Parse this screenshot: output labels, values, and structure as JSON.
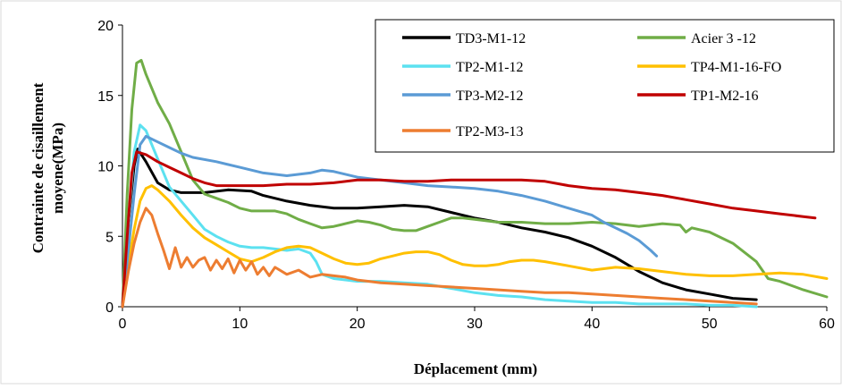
{
  "chart_data": {
    "type": "line",
    "xlabel": "Déplacement (mm)",
    "ylabel_line1": "Contrainte de cisaillement",
    "ylabel_line2": "moyene(MPa)",
    "xlim": [
      0,
      60
    ],
    "ylim": [
      0,
      20
    ],
    "x_ticks": [
      "0",
      "10",
      "20",
      "30",
      "40",
      "50",
      "60"
    ],
    "y_ticks": [
      "0",
      "5",
      "10",
      "15",
      "20"
    ],
    "grid": false,
    "legend_position": "top-right",
    "series": [
      {
        "name": "TD3-M1-12",
        "color": "#000000",
        "points": [
          [
            0,
            0
          ],
          [
            0.5,
            6
          ],
          [
            1,
            10
          ],
          [
            1.3,
            11.2
          ],
          [
            2,
            10.3
          ],
          [
            3,
            8.8
          ],
          [
            4,
            8.3
          ],
          [
            5,
            8.1
          ],
          [
            7,
            8.1
          ],
          [
            9,
            8.3
          ],
          [
            11,
            8.2
          ],
          [
            12,
            7.9
          ],
          [
            14,
            7.5
          ],
          [
            16,
            7.2
          ],
          [
            18,
            7.0
          ],
          [
            20,
            7.0
          ],
          [
            22,
            7.1
          ],
          [
            24,
            7.2
          ],
          [
            26,
            7.1
          ],
          [
            28,
            6.7
          ],
          [
            30,
            6.3
          ],
          [
            32,
            6.0
          ],
          [
            34,
            5.6
          ],
          [
            36,
            5.3
          ],
          [
            38,
            4.9
          ],
          [
            40,
            4.3
          ],
          [
            42,
            3.5
          ],
          [
            44,
            2.5
          ],
          [
            46,
            1.7
          ],
          [
            48,
            1.2
          ],
          [
            50,
            0.9
          ],
          [
            52,
            0.6
          ],
          [
            54,
            0.5
          ]
        ]
      },
      {
        "name": "Acier 3 -12",
        "color": "#70AD47",
        "points": [
          [
            0,
            0
          ],
          [
            0.4,
            8
          ],
          [
            0.8,
            14
          ],
          [
            1.2,
            17.3
          ],
          [
            1.6,
            17.5
          ],
          [
            2,
            16.5
          ],
          [
            3,
            14.5
          ],
          [
            4,
            13
          ],
          [
            5,
            11
          ],
          [
            6,
            9
          ],
          [
            7,
            8
          ],
          [
            8,
            7.7
          ],
          [
            9,
            7.4
          ],
          [
            10,
            7
          ],
          [
            11,
            6.8
          ],
          [
            12,
            6.8
          ],
          [
            13,
            6.8
          ],
          [
            14,
            6.6
          ],
          [
            15,
            6.2
          ],
          [
            16,
            5.9
          ],
          [
            17,
            5.6
          ],
          [
            18,
            5.7
          ],
          [
            19,
            5.9
          ],
          [
            20,
            6.1
          ],
          [
            21,
            6.0
          ],
          [
            22,
            5.8
          ],
          [
            23,
            5.5
          ],
          [
            24,
            5.4
          ],
          [
            25,
            5.4
          ],
          [
            26,
            5.7
          ],
          [
            27,
            6.0
          ],
          [
            28,
            6.3
          ],
          [
            29,
            6.3
          ],
          [
            30,
            6.2
          ],
          [
            32,
            6.0
          ],
          [
            34,
            6.0
          ],
          [
            36,
            5.9
          ],
          [
            38,
            5.9
          ],
          [
            40,
            6.0
          ],
          [
            42,
            5.9
          ],
          [
            44,
            5.7
          ],
          [
            46,
            5.9
          ],
          [
            47.5,
            5.8
          ],
          [
            48,
            5.3
          ],
          [
            48.5,
            5.6
          ],
          [
            50,
            5.3
          ],
          [
            52,
            4.5
          ],
          [
            54,
            3.2
          ],
          [
            55,
            2.0
          ],
          [
            56,
            1.8
          ],
          [
            58,
            1.2
          ],
          [
            60,
            0.7
          ]
        ]
      },
      {
        "name": "TP2-M1-12",
        "color": "#5CE1F0",
        "points": [
          [
            0,
            0
          ],
          [
            0.5,
            6
          ],
          [
            1,
            11
          ],
          [
            1.5,
            12.9
          ],
          [
            2,
            12.5
          ],
          [
            3,
            10.5
          ],
          [
            4,
            8.5
          ],
          [
            5,
            7.5
          ],
          [
            6,
            6.5
          ],
          [
            7,
            5.5
          ],
          [
            8,
            5.0
          ],
          [
            9,
            4.6
          ],
          [
            10,
            4.3
          ],
          [
            11,
            4.2
          ],
          [
            12,
            4.2
          ],
          [
            13,
            4.1
          ],
          [
            14,
            4.0
          ],
          [
            15,
            4.1
          ],
          [
            16,
            3.8
          ],
          [
            16.5,
            3.2
          ],
          [
            17,
            2.3
          ],
          [
            18,
            2.0
          ],
          [
            20,
            1.8
          ],
          [
            22,
            1.8
          ],
          [
            24,
            1.7
          ],
          [
            26,
            1.6
          ],
          [
            28,
            1.3
          ],
          [
            30,
            1.0
          ],
          [
            32,
            0.8
          ],
          [
            34,
            0.7
          ],
          [
            36,
            0.5
          ],
          [
            38,
            0.4
          ],
          [
            40,
            0.3
          ],
          [
            42,
            0.3
          ],
          [
            44,
            0.2
          ],
          [
            46,
            0.2
          ],
          [
            48,
            0.2
          ],
          [
            50,
            0.1
          ],
          [
            52,
            0.1
          ],
          [
            54,
            0.0
          ]
        ]
      },
      {
        "name": "TP4-M1-16-FO",
        "color": "#FFC000",
        "points": [
          [
            0,
            0
          ],
          [
            0.5,
            3
          ],
          [
            1,
            5.5
          ],
          [
            1.5,
            7.5
          ],
          [
            2,
            8.4
          ],
          [
            2.5,
            8.6
          ],
          [
            3,
            8.3
          ],
          [
            4,
            7.5
          ],
          [
            5,
            6.5
          ],
          [
            6,
            5.6
          ],
          [
            7,
            4.9
          ],
          [
            8,
            4.4
          ],
          [
            9,
            3.9
          ],
          [
            10,
            3.4
          ],
          [
            11,
            3.2
          ],
          [
            12,
            3.5
          ],
          [
            13,
            3.9
          ],
          [
            14,
            4.2
          ],
          [
            15,
            4.3
          ],
          [
            16,
            4.2
          ],
          [
            17,
            3.8
          ],
          [
            18,
            3.4
          ],
          [
            19,
            3.1
          ],
          [
            20,
            3.0
          ],
          [
            21,
            3.1
          ],
          [
            22,
            3.4
          ],
          [
            23,
            3.6
          ],
          [
            24,
            3.8
          ],
          [
            25,
            3.9
          ],
          [
            26,
            3.9
          ],
          [
            27,
            3.7
          ],
          [
            28,
            3.3
          ],
          [
            29,
            3.0
          ],
          [
            30,
            2.9
          ],
          [
            31,
            2.9
          ],
          [
            32,
            3.0
          ],
          [
            33,
            3.2
          ],
          [
            34,
            3.3
          ],
          [
            35,
            3.3
          ],
          [
            36,
            3.2
          ],
          [
            38,
            2.9
          ],
          [
            40,
            2.6
          ],
          [
            42,
            2.8
          ],
          [
            44,
            2.7
          ],
          [
            46,
            2.5
          ],
          [
            48,
            2.3
          ],
          [
            50,
            2.2
          ],
          [
            52,
            2.2
          ],
          [
            54,
            2.3
          ],
          [
            56,
            2.4
          ],
          [
            58,
            2.3
          ],
          [
            60,
            2.0
          ]
        ]
      },
      {
        "name": "TP3-M2-12",
        "color": "#5B9BD5",
        "points": [
          [
            0,
            0
          ],
          [
            0.5,
            4
          ],
          [
            1,
            8
          ],
          [
            1.5,
            11.5
          ],
          [
            2,
            12.1
          ],
          [
            3,
            11.7
          ],
          [
            4,
            11.3
          ],
          [
            5,
            10.9
          ],
          [
            6,
            10.6
          ],
          [
            8,
            10.3
          ],
          [
            10,
            9.9
          ],
          [
            12,
            9.5
          ],
          [
            14,
            9.3
          ],
          [
            16,
            9.5
          ],
          [
            17,
            9.7
          ],
          [
            18,
            9.6
          ],
          [
            20,
            9.2
          ],
          [
            22,
            9.0
          ],
          [
            24,
            8.8
          ],
          [
            26,
            8.6
          ],
          [
            28,
            8.5
          ],
          [
            30,
            8.4
          ],
          [
            32,
            8.2
          ],
          [
            34,
            7.9
          ],
          [
            36,
            7.5
          ],
          [
            38,
            7.0
          ],
          [
            40,
            6.5
          ],
          [
            41,
            6.0
          ],
          [
            42,
            5.6
          ],
          [
            43,
            5.2
          ],
          [
            44,
            4.7
          ],
          [
            45,
            4.0
          ],
          [
            45.5,
            3.6
          ]
        ]
      },
      {
        "name": "TP1-M2-16",
        "color": "#C00000",
        "points": [
          [
            0,
            0
          ],
          [
            0.4,
            5
          ],
          [
            0.8,
            9.5
          ],
          [
            1.2,
            11.0
          ],
          [
            1.6,
            10.9
          ],
          [
            2,
            10.8
          ],
          [
            3,
            10.3
          ],
          [
            4,
            9.9
          ],
          [
            5,
            9.5
          ],
          [
            6,
            9.1
          ],
          [
            7,
            8.8
          ],
          [
            8,
            8.6
          ],
          [
            10,
            8.6
          ],
          [
            12,
            8.6
          ],
          [
            14,
            8.7
          ],
          [
            16,
            8.7
          ],
          [
            18,
            8.8
          ],
          [
            20,
            9.0
          ],
          [
            22,
            9.0
          ],
          [
            24,
            8.9
          ],
          [
            26,
            8.9
          ],
          [
            28,
            9.0
          ],
          [
            30,
            9.0
          ],
          [
            32,
            9.0
          ],
          [
            34,
            9.0
          ],
          [
            36,
            8.9
          ],
          [
            38,
            8.6
          ],
          [
            40,
            8.4
          ],
          [
            42,
            8.3
          ],
          [
            44,
            8.1
          ],
          [
            46,
            7.9
          ],
          [
            48,
            7.6
          ],
          [
            50,
            7.3
          ],
          [
            52,
            7.0
          ],
          [
            54,
            6.8
          ],
          [
            56,
            6.6
          ],
          [
            58,
            6.4
          ],
          [
            59,
            6.3
          ]
        ]
      },
      {
        "name": "TP2-M3-13",
        "color": "#ED7D31",
        "points": [
          [
            0,
            0
          ],
          [
            0.5,
            2.5
          ],
          [
            1,
            4.5
          ],
          [
            1.5,
            6
          ],
          [
            2,
            7.0
          ],
          [
            2.5,
            6.5
          ],
          [
            3,
            5.2
          ],
          [
            3.5,
            4
          ],
          [
            4,
            2.7
          ],
          [
            4.5,
            4.2
          ],
          [
            5,
            2.8
          ],
          [
            5.5,
            3.5
          ],
          [
            6,
            2.8
          ],
          [
            6.5,
            3.3
          ],
          [
            7,
            3.5
          ],
          [
            7.5,
            2.6
          ],
          [
            8,
            3.3
          ],
          [
            8.5,
            2.7
          ],
          [
            9,
            3.4
          ],
          [
            9.5,
            2.4
          ],
          [
            10,
            3.3
          ],
          [
            10.5,
            2.6
          ],
          [
            11,
            3.2
          ],
          [
            11.5,
            2.3
          ],
          [
            12,
            2.8
          ],
          [
            12.5,
            2.2
          ],
          [
            13,
            2.8
          ],
          [
            14,
            2.3
          ],
          [
            15,
            2.6
          ],
          [
            16,
            2.1
          ],
          [
            17,
            2.3
          ],
          [
            18,
            2.2
          ],
          [
            19,
            2.1
          ],
          [
            20,
            1.9
          ],
          [
            21,
            1.8
          ],
          [
            22,
            1.7
          ],
          [
            24,
            1.6
          ],
          [
            26,
            1.5
          ],
          [
            28,
            1.4
          ],
          [
            30,
            1.3
          ],
          [
            32,
            1.2
          ],
          [
            34,
            1.1
          ],
          [
            36,
            1.0
          ],
          [
            38,
            1.0
          ],
          [
            40,
            0.9
          ],
          [
            42,
            0.8
          ],
          [
            44,
            0.7
          ],
          [
            46,
            0.6
          ],
          [
            48,
            0.5
          ],
          [
            50,
            0.4
          ],
          [
            52,
            0.3
          ],
          [
            54,
            0.2
          ]
        ]
      }
    ]
  }
}
